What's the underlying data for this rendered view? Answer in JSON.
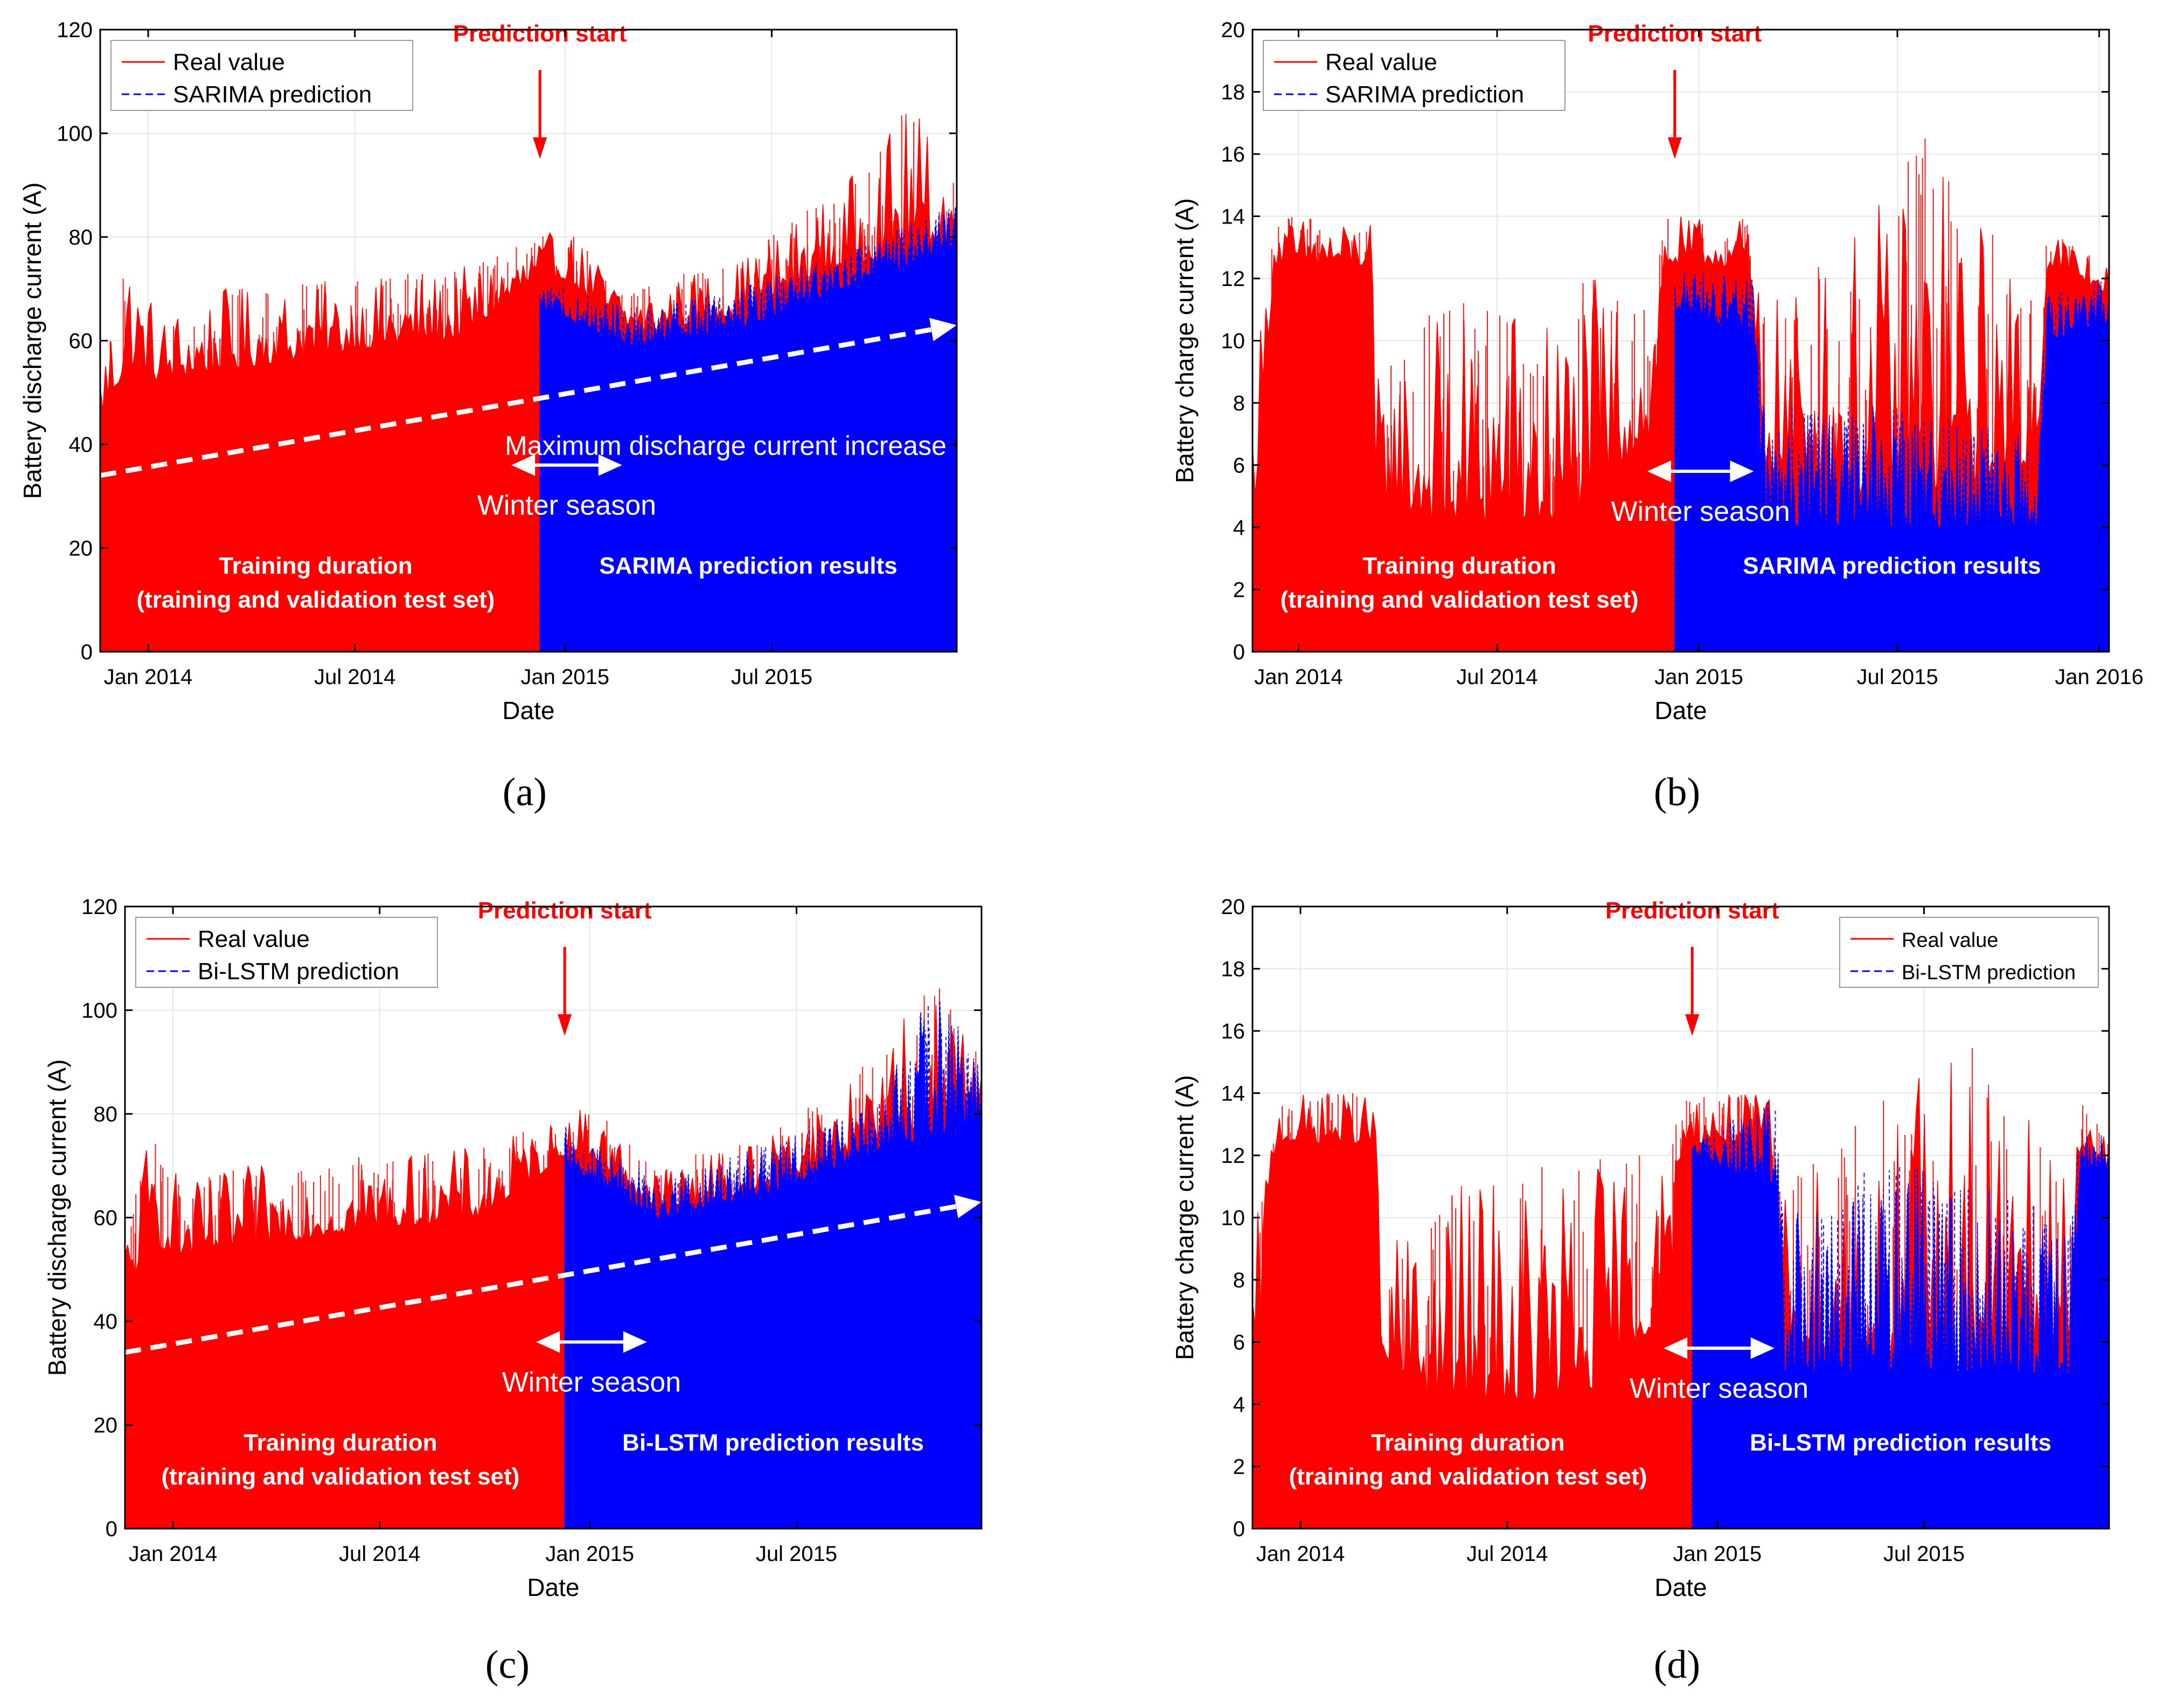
{
  "figure": {
    "panel_labels": [
      "(a)",
      "(b)",
      "(c)",
      "(d)"
    ]
  },
  "colors": {
    "real": "#ff0000",
    "prediction": "#0000ff",
    "annotation_red": "#ff0000",
    "annotation_white": "#ffffff",
    "axis": "#000000",
    "grid": "#e6e6e6"
  },
  "chart_data": [
    {
      "type": "line",
      "panel": "(a)",
      "xlabel": "Date",
      "ylabel": "Battery discharge current (A)",
      "xlim": [
        "2013-11-20",
        "2015-12-10"
      ],
      "ylim": [
        0,
        120
      ],
      "yticks": [
        0,
        20,
        40,
        60,
        80,
        100,
        120
      ],
      "xticks": [
        {
          "date": "2014-01-01",
          "label": "Jan 2014"
        },
        {
          "date": "2014-07-01",
          "label": "Jul 2014"
        },
        {
          "date": "2015-01-01",
          "label": "Jan 2015"
        },
        {
          "date": "2015-07-01",
          "label": "Jul 2015"
        }
      ],
      "grid": true,
      "legend": {
        "position": "top-left",
        "entries": [
          "Real value",
          "SARIMA prediction"
        ]
      },
      "series": [
        {
          "name": "Real value",
          "style": "solid",
          "x_range": [
            "2013-11-20",
            "2015-12-10"
          ],
          "envelope": [
            {
              "x": "2013-11-20",
              "base": 45,
              "peak": 58
            },
            {
              "x": "2013-12-15",
              "base": 55,
              "peak": 81
            },
            {
              "x": "2014-01-10",
              "base": 52,
              "peak": 66
            },
            {
              "x": "2014-03-01",
              "base": 54,
              "peak": 70
            },
            {
              "x": "2014-07-01",
              "base": 58,
              "peak": 72
            },
            {
              "x": "2014-10-01",
              "base": 60,
              "peak": 74
            },
            {
              "x": "2014-12-10",
              "base": 72,
              "peak": 80
            },
            {
              "x": "2015-01-01",
              "base": 72,
              "peak": 82
            },
            {
              "x": "2015-03-01",
              "base": 61,
              "peak": 70
            },
            {
              "x": "2015-06-01",
              "base": 65,
              "peak": 76
            },
            {
              "x": "2015-09-01",
              "base": 74,
              "peak": 90
            },
            {
              "x": "2015-11-01",
              "base": 78,
              "peak": 106
            },
            {
              "x": "2015-12-10",
              "base": 80,
              "peak": 92
            }
          ]
        },
        {
          "name": "SARIMA prediction",
          "style": "dashed",
          "x_range": [
            "2014-12-10",
            "2015-12-10"
          ],
          "envelope": [
            {
              "x": "2014-12-10",
              "base": 66,
              "peak": 72
            },
            {
              "x": "2015-03-01",
              "base": 59,
              "peak": 66
            },
            {
              "x": "2015-06-01",
              "base": 62,
              "peak": 70
            },
            {
              "x": "2015-09-01",
              "base": 70,
              "peak": 78
            },
            {
              "x": "2015-12-10",
              "base": 78,
              "peak": 86
            }
          ]
        }
      ],
      "trend_line": {
        "from": {
          "x": "2013-11-20",
          "y": 34
        },
        "to": {
          "x": "2015-12-10",
          "y": 63
        }
      },
      "annotations": {
        "prediction_start": {
          "text": "Prediction start",
          "x": "2014-12-10"
        },
        "trend_label": "Maximum  discharge  current  increase",
        "winter_label": "Winter  season",
        "winter_range": [
          "2014-11-15",
          "2015-02-20"
        ],
        "training_line1": "Training duration",
        "training_line2": "(training and validation test set)",
        "prediction_results": "SARIMA prediction results"
      }
    },
    {
      "type": "line",
      "panel": "(b)",
      "xlabel": "Date",
      "ylabel": "Battery charge current (A)",
      "xlim": [
        "2013-11-20",
        "2016-01-10"
      ],
      "ylim": [
        0,
        20
      ],
      "yticks": [
        0,
        2,
        4,
        6,
        8,
        10,
        12,
        14,
        16,
        18,
        20
      ],
      "xticks": [
        {
          "date": "2014-01-01",
          "label": "Jan 2014"
        },
        {
          "date": "2014-07-01",
          "label": "Jul 2014"
        },
        {
          "date": "2015-01-01",
          "label": "Jan 2015"
        },
        {
          "date": "2015-07-01",
          "label": "Jul 2015"
        },
        {
          "date": "2016-01-01",
          "label": "Jan 2016"
        }
      ],
      "grid": true,
      "legend": {
        "position": "top-left",
        "entries": [
          "Real value",
          "SARIMA prediction"
        ]
      },
      "series": [
        {
          "name": "Real value",
          "style": "solid",
          "x_range": [
            "2013-11-20",
            "2016-01-10"
          ],
          "envelope": [
            {
              "x": "2013-11-20",
              "base": 4,
              "peak": 9
            },
            {
              "x": "2013-12-10",
              "base": 12.4,
              "peak": 14
            },
            {
              "x": "2014-03-08",
              "base": 12.4,
              "peak": 14
            },
            {
              "x": "2014-03-12",
              "base": 5,
              "peak": 9
            },
            {
              "x": "2014-05-01",
              "base": 4,
              "peak": 11
            },
            {
              "x": "2014-09-01",
              "base": 4,
              "peak": 12
            },
            {
              "x": "2014-11-20",
              "base": 7,
              "peak": 12
            },
            {
              "x": "2014-12-01",
              "base": 12.4,
              "peak": 14
            },
            {
              "x": "2015-02-15",
              "base": 12.4,
              "peak": 14
            },
            {
              "x": "2015-03-01",
              "base": 6,
              "peak": 11
            },
            {
              "x": "2015-06-01",
              "base": 5,
              "peak": 14
            },
            {
              "x": "2015-08-01",
              "base": 5,
              "peak": 16.8
            },
            {
              "x": "2015-11-05",
              "base": 6,
              "peak": 11
            },
            {
              "x": "2015-11-15",
              "base": 12.4,
              "peak": 14
            },
            {
              "x": "2016-01-10",
              "base": 11.5,
              "peak": 12.4
            }
          ]
        },
        {
          "name": "SARIMA prediction",
          "style": "dashed",
          "x_range": [
            "2014-12-10",
            "2016-01-10"
          ],
          "envelope": [
            {
              "x": "2014-12-10",
              "base": 11,
              "peak": 12.4
            },
            {
              "x": "2015-02-20",
              "base": 10,
              "peak": 12
            },
            {
              "x": "2015-03-01",
              "base": 4,
              "peak": 8
            },
            {
              "x": "2015-06-01",
              "base": 4,
              "peak": 8
            },
            {
              "x": "2015-11-05",
              "base": 4,
              "peak": 7
            },
            {
              "x": "2015-11-15",
              "base": 10,
              "peak": 11.5
            },
            {
              "x": "2016-01-10",
              "base": 10.5,
              "peak": 12
            }
          ]
        }
      ],
      "annotations": {
        "prediction_start": {
          "text": "Prediction start",
          "x": "2014-12-10"
        },
        "winter_label": "Winter  season",
        "winter_range": [
          "2014-11-15",
          "2015-02-20"
        ],
        "training_line1": "Training duration",
        "training_line2": "(training and validation test set)",
        "prediction_results": "SARIMA prediction results"
      }
    },
    {
      "type": "line",
      "panel": "(c)",
      "xlabel": "Date",
      "ylabel": "Battery discharge current (A)",
      "xlim": [
        "2013-11-20",
        "2015-12-10"
      ],
      "ylim": [
        0,
        120
      ],
      "yticks": [
        0,
        20,
        40,
        60,
        80,
        100,
        120
      ],
      "xticks": [
        {
          "date": "2014-01-01",
          "label": "Jan 2014"
        },
        {
          "date": "2014-07-01",
          "label": "Jul 2014"
        },
        {
          "date": "2015-01-01",
          "label": "Jan 2015"
        },
        {
          "date": "2015-07-01",
          "label": "Jul 2015"
        }
      ],
      "grid": true,
      "legend": {
        "position": "top-left",
        "entries": [
          "Real value",
          "Bi-LSTM prediction"
        ]
      },
      "series": [
        {
          "name": "Real value",
          "style": "solid",
          "x_range": [
            "2013-11-20",
            "2015-12-10"
          ],
          "envelope": [
            {
              "x": "2013-11-20",
              "base": 45,
              "peak": 58
            },
            {
              "x": "2013-12-15",
              "base": 55,
              "peak": 81
            },
            {
              "x": "2014-01-10",
              "base": 52,
              "peak": 66
            },
            {
              "x": "2014-03-01",
              "base": 54,
              "peak": 70
            },
            {
              "x": "2014-07-01",
              "base": 58,
              "peak": 72
            },
            {
              "x": "2014-10-01",
              "base": 60,
              "peak": 74
            },
            {
              "x": "2014-12-10",
              "base": 72,
              "peak": 80
            },
            {
              "x": "2015-01-01",
              "base": 72,
              "peak": 82
            },
            {
              "x": "2015-03-01",
              "base": 61,
              "peak": 70
            },
            {
              "x": "2015-06-01",
              "base": 65,
              "peak": 76
            },
            {
              "x": "2015-09-01",
              "base": 74,
              "peak": 90
            },
            {
              "x": "2015-11-01",
              "base": 78,
              "peak": 106
            },
            {
              "x": "2015-12-10",
              "base": 80,
              "peak": 92
            }
          ]
        },
        {
          "name": "Bi-LSTM prediction",
          "style": "dashed",
          "x_range": [
            "2014-12-10",
            "2015-12-10"
          ],
          "envelope": [
            {
              "x": "2014-12-10",
              "base": 70,
              "peak": 78
            },
            {
              "x": "2015-03-01",
              "base": 60,
              "peak": 68
            },
            {
              "x": "2015-06-01",
              "base": 64,
              "peak": 74
            },
            {
              "x": "2015-09-01",
              "base": 72,
              "peak": 82
            },
            {
              "x": "2015-11-01",
              "base": 76,
              "peak": 106
            },
            {
              "x": "2015-12-10",
              "base": 78,
              "peak": 88
            }
          ]
        }
      ],
      "trend_line": {
        "from": {
          "x": "2013-11-20",
          "y": 34
        },
        "to": {
          "x": "2015-12-10",
          "y": 63
        }
      },
      "annotations": {
        "prediction_start": {
          "text": "Prediction start",
          "x": "2014-12-10"
        },
        "winter_label": "Winter  season",
        "winter_range": [
          "2014-11-15",
          "2015-02-20"
        ],
        "training_line1": "Training duration",
        "training_line2": "(training and validation test set)",
        "prediction_results": "Bi-LSTM prediction results"
      }
    },
    {
      "type": "line",
      "panel": "(d)",
      "xlabel": "Date",
      "ylabel": "Battery charge current (A)",
      "xlim": [
        "2013-11-20",
        "2015-12-10"
      ],
      "ylim": [
        0,
        20
      ],
      "yticks": [
        0,
        2,
        4,
        6,
        8,
        10,
        12,
        14,
        16,
        18,
        20
      ],
      "xticks": [
        {
          "date": "2014-01-01",
          "label": "Jan 2014"
        },
        {
          "date": "2014-07-01",
          "label": "Jul 2014"
        },
        {
          "date": "2015-01-01",
          "label": "Jan 2015"
        },
        {
          "date": "2015-07-01",
          "label": "Jul 2015"
        }
      ],
      "grid": true,
      "legend": {
        "position": "top-right",
        "entries": [
          "Real value",
          "Bi-LSTM prediction"
        ]
      },
      "series": [
        {
          "name": "Real value",
          "style": "solid",
          "x_range": [
            "2013-11-20",
            "2015-12-10"
          ],
          "envelope": [
            {
              "x": "2013-11-20",
              "base": 4,
              "peak": 9
            },
            {
              "x": "2013-12-10",
              "base": 12.4,
              "peak": 14
            },
            {
              "x": "2014-03-08",
              "base": 12.4,
              "peak": 14
            },
            {
              "x": "2014-03-12",
              "base": 5,
              "peak": 9
            },
            {
              "x": "2014-05-01",
              "base": 4,
              "peak": 11
            },
            {
              "x": "2014-09-01",
              "base": 4,
              "peak": 12
            },
            {
              "x": "2014-11-20",
              "base": 7,
              "peak": 12
            },
            {
              "x": "2014-12-01",
              "base": 12.4,
              "peak": 14
            },
            {
              "x": "2015-02-15",
              "base": 12.4,
              "peak": 14
            },
            {
              "x": "2015-03-01",
              "base": 6,
              "peak": 11
            },
            {
              "x": "2015-06-01",
              "base": 5,
              "peak": 14
            },
            {
              "x": "2015-08-01",
              "base": 5,
              "peak": 16.8
            },
            {
              "x": "2015-11-05",
              "base": 6,
              "peak": 11
            },
            {
              "x": "2015-11-15",
              "base": 12.4,
              "peak": 14
            },
            {
              "x": "2015-12-10",
              "base": 11.5,
              "peak": 12.4
            }
          ]
        },
        {
          "name": "Bi-LSTM prediction",
          "style": "dashed",
          "x_range": [
            "2014-12-10",
            "2015-12-10"
          ],
          "envelope": [
            {
              "x": "2014-12-10",
              "base": 12,
              "peak": 12.4
            },
            {
              "x": "2015-02-20",
              "base": 11,
              "peak": 14
            },
            {
              "x": "2015-03-01",
              "base": 5,
              "peak": 10
            },
            {
              "x": "2015-06-01",
              "base": 5,
              "peak": 12
            },
            {
              "x": "2015-11-05",
              "base": 5,
              "peak": 10
            },
            {
              "x": "2015-11-15",
              "base": 11.5,
              "peak": 13.5
            },
            {
              "x": "2015-12-10",
              "base": 11.5,
              "peak": 12.4
            }
          ]
        }
      ],
      "annotations": {
        "prediction_start": {
          "text": "Prediction start",
          "x": "2014-12-10"
        },
        "winter_label": "Winter  season",
        "winter_range": [
          "2014-11-15",
          "2015-02-20"
        ],
        "training_line1": "Training duration",
        "training_line2": "(training and validation test set)",
        "prediction_results": "Bi-LSTM prediction results"
      }
    }
  ]
}
